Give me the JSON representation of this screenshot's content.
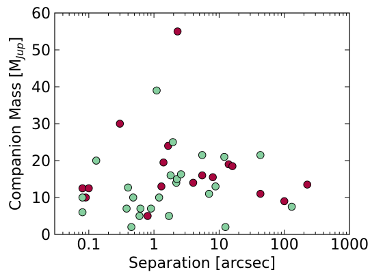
{
  "chart_data": {
    "type": "scatter",
    "xlabel": "Separation [arcsec]",
    "ylabel_main": "Companion Mass [M",
    "ylabel_sub": "Jup",
    "ylabel_close": "]",
    "x_scale": "log",
    "xlim": [
      0.03,
      1000
    ],
    "ylim": [
      0,
      60
    ],
    "x_ticks": [
      {
        "value": 0.1,
        "label": "0.1"
      },
      {
        "value": 1,
        "label": "1"
      },
      {
        "value": 10,
        "label": "10"
      },
      {
        "value": 100,
        "label": "100"
      },
      {
        "value": 1000,
        "label": "1000"
      }
    ],
    "y_ticks": [
      {
        "value": 0,
        "label": "0"
      },
      {
        "value": 10,
        "label": "10"
      },
      {
        "value": 20,
        "label": "20"
      },
      {
        "value": 30,
        "label": "30"
      },
      {
        "value": 40,
        "label": "40"
      },
      {
        "value": 50,
        "label": "50"
      },
      {
        "value": 60,
        "label": "60"
      }
    ],
    "grid": false,
    "legend": "none",
    "series": [
      {
        "color": "#a8073f",
        "points": [
          [
            0.08,
            12.5
          ],
          [
            0.09,
            10
          ],
          [
            0.1,
            12.5
          ],
          [
            0.3,
            30
          ],
          [
            0.8,
            5
          ],
          [
            1.3,
            13
          ],
          [
            1.4,
            19.5
          ],
          [
            1.65,
            24
          ],
          [
            2.3,
            55
          ],
          [
            4,
            14
          ],
          [
            5.5,
            16
          ],
          [
            8,
            15.5
          ],
          [
            14,
            19
          ],
          [
            16,
            18.5
          ],
          [
            43,
            11
          ],
          [
            100,
            9
          ],
          [
            225,
            13.5
          ]
        ]
      },
      {
        "color": "#86cf9f",
        "points": [
          [
            0.08,
            6
          ],
          [
            0.08,
            10
          ],
          [
            0.13,
            20
          ],
          [
            0.38,
            7
          ],
          [
            0.4,
            12.7
          ],
          [
            0.45,
            2
          ],
          [
            0.48,
            10
          ],
          [
            0.6,
            5
          ],
          [
            0.62,
            7
          ],
          [
            0.9,
            7
          ],
          [
            1.1,
            39
          ],
          [
            1.2,
            10
          ],
          [
            1.7,
            5
          ],
          [
            1.8,
            16
          ],
          [
            1.95,
            25
          ],
          [
            2.2,
            14
          ],
          [
            2.25,
            15
          ],
          [
            2.6,
            16.3
          ],
          [
            5.5,
            21.5
          ],
          [
            7,
            11
          ],
          [
            8.8,
            13
          ],
          [
            12,
            21
          ],
          [
            12.5,
            2
          ],
          [
            43,
            21.5
          ],
          [
            130,
            7.5
          ]
        ]
      }
    ]
  }
}
